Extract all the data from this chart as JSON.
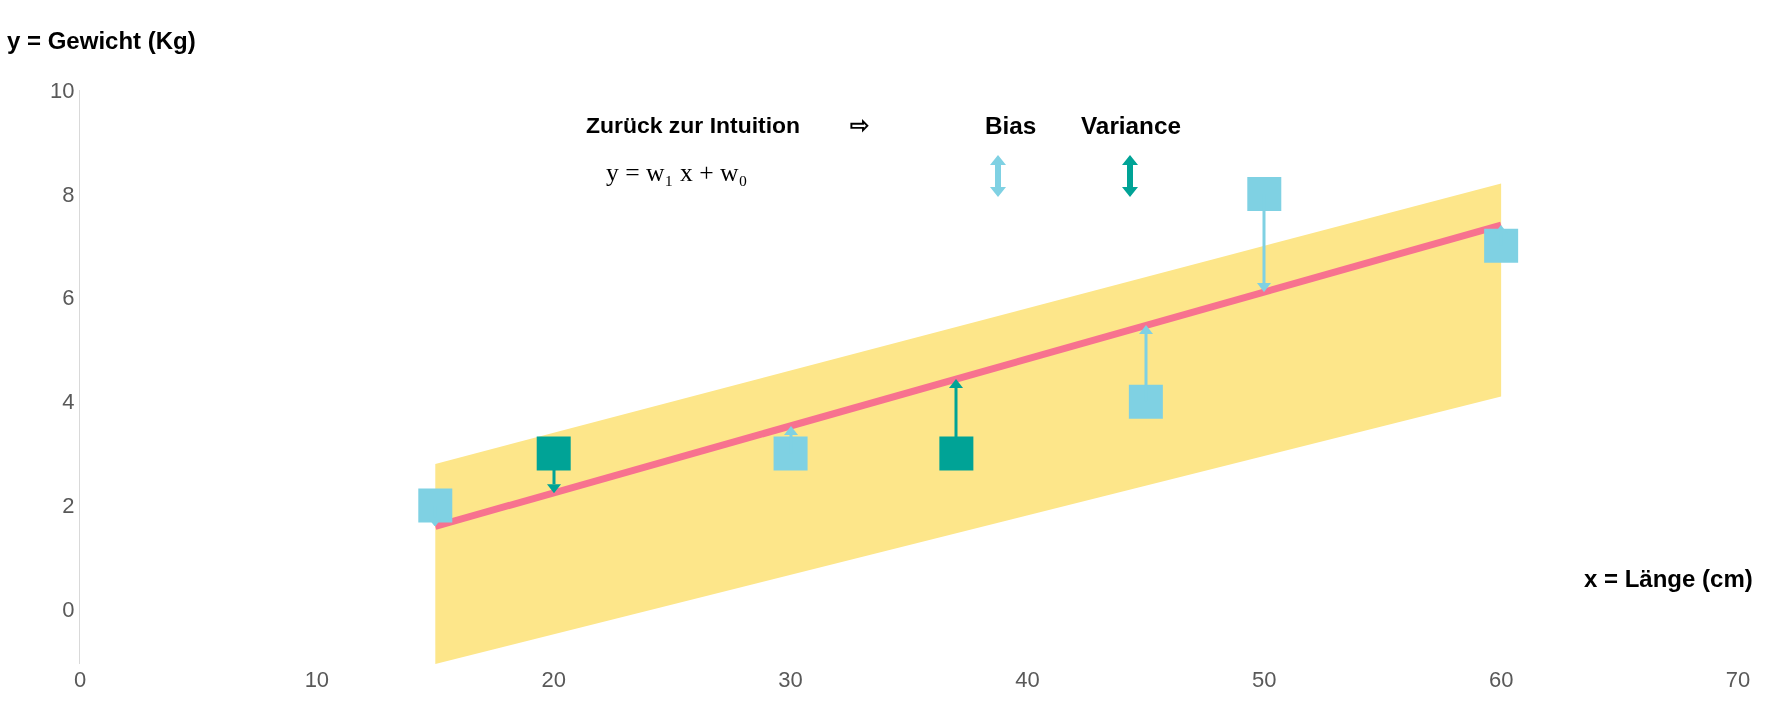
{
  "chart_data": {
    "type": "scatter",
    "xlabel": "x = Länge (cm)",
    "ylabel": "y = Gewicht (Kg)",
    "annotations": [
      "Zurück zur Intuition",
      "⇨",
      "Bias",
      "Variance",
      "y = w₁ x + w₀"
    ],
    "xlim": [
      0,
      70
    ],
    "xticks": [
      0,
      10,
      20,
      30,
      40,
      50,
      60,
      70
    ],
    "ylim": [
      -1.05,
      10
    ],
    "yticks": [
      0,
      2,
      4,
      6,
      8,
      10
    ],
    "grid": false,
    "series": [
      {
        "type": "line",
        "color": "#f7728f",
        "x": [
          15,
          60
        ],
        "values": [
          1.6,
          7.4
        ],
        "lower": [
          -1.05,
          4.1
        ],
        "upper": [
          2.8,
          8.2
        ]
      },
      {
        "marker": "square",
        "x": [
          15,
          20,
          30,
          37,
          45,
          50,
          60
        ],
        "values": [
          2,
          3,
          3,
          3,
          4,
          8,
          7
        ],
        "colors": [
          "#7fd1e3",
          "#00a396",
          "#7fd1e3",
          "#00a396",
          "#7fd1e3",
          "#7fd1e3",
          "#7fd1e3"
        ]
      }
    ]
  }
}
